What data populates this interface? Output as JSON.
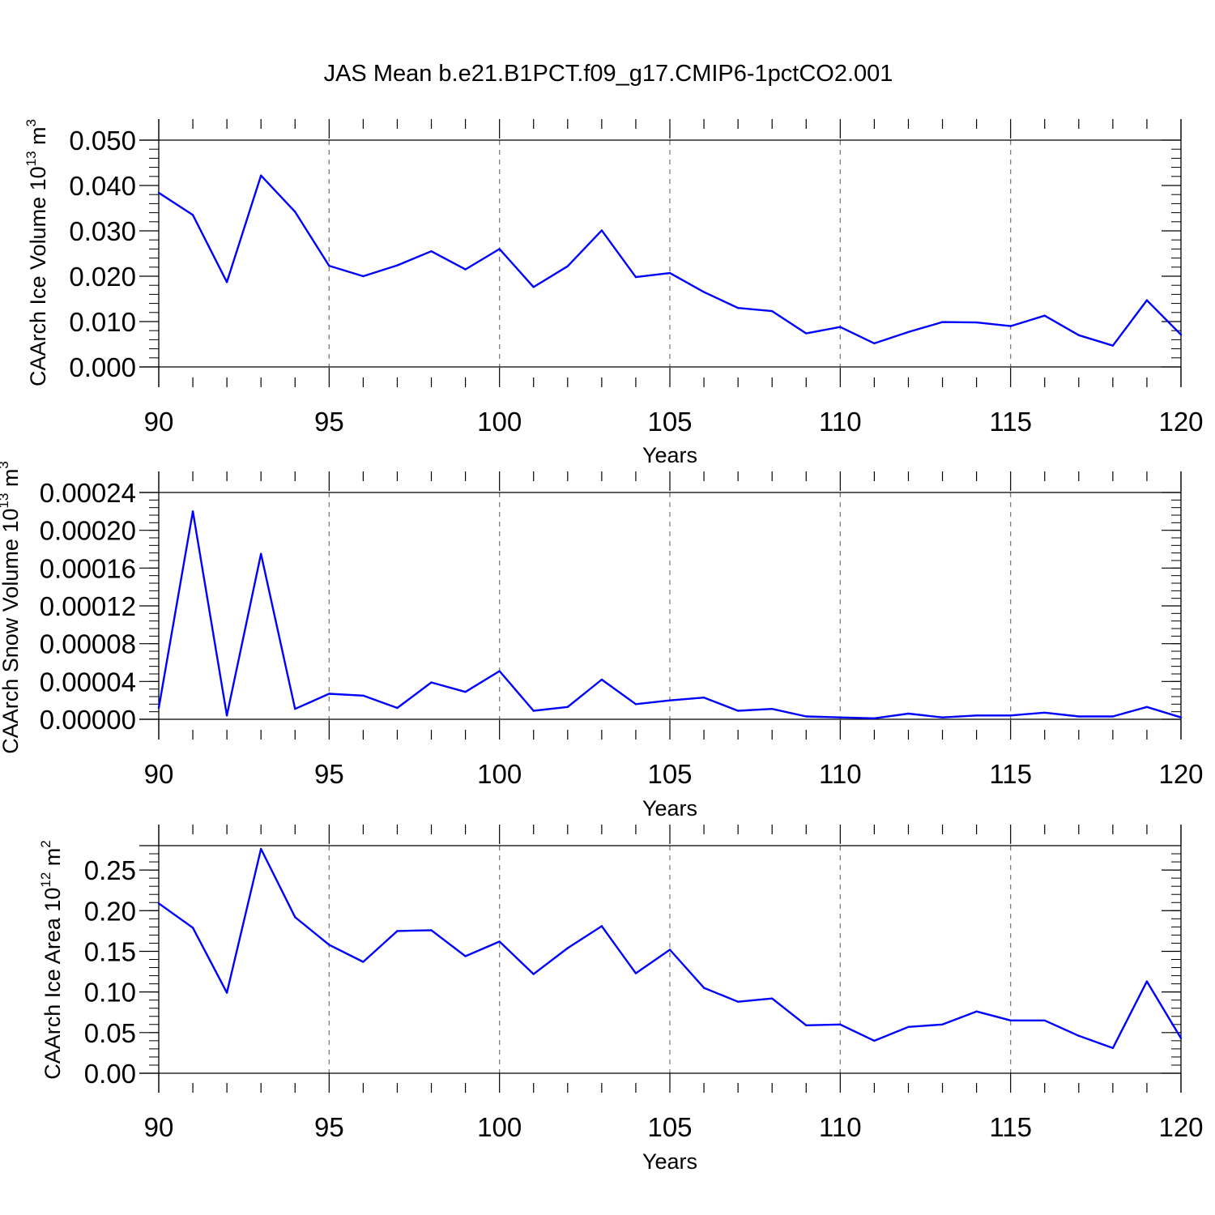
{
  "title": "JAS Mean b.e21.B1PCT.f09_g17.CMIP6-1pctCO2.001",
  "colors": {
    "series": "#0000ff",
    "axis": "#000000",
    "grid": "#808080"
  },
  "chart_data": [
    {
      "type": "line",
      "xlabel": "Years",
      "ylabel": {
        "text": "CAArch Ice Volume 10",
        "exponent": "13",
        "unit": " m",
        "unit_exponent": "3"
      },
      "xlim": [
        90,
        120
      ],
      "ylim": [
        0,
        0.05
      ],
      "x_ticks": [
        "90",
        "95",
        "100",
        "105",
        "110",
        "115",
        "120"
      ],
      "y_ticks": [
        "0.000",
        "0.010",
        "0.020",
        "0.030",
        "0.040",
        "0.050"
      ],
      "grid": "vertical dashed at major x ticks",
      "x": [
        90,
        91,
        92,
        93,
        94,
        95,
        96,
        97,
        98,
        99,
        100,
        101,
        102,
        103,
        104,
        105,
        106,
        107,
        108,
        109,
        110,
        111,
        112,
        113,
        114,
        115,
        116,
        117,
        118,
        119,
        120
      ],
      "values": [
        0.0384,
        0.0335,
        0.0187,
        0.0422,
        0.0342,
        0.0223,
        0.02,
        0.0224,
        0.0255,
        0.0215,
        0.026,
        0.0176,
        0.0222,
        0.0301,
        0.0198,
        0.0207,
        0.0165,
        0.013,
        0.0123,
        0.0074,
        0.0088,
        0.0052,
        0.0077,
        0.0099,
        0.0098,
        0.009,
        0.0113,
        0.007,
        0.0047,
        0.0147,
        0.0071
      ]
    },
    {
      "type": "line",
      "xlabel": "Years",
      "ylabel": {
        "text": "CAArch Snow Volume 10",
        "exponent": "13",
        "unit": " m",
        "unit_exponent": "3"
      },
      "xlim": [
        90,
        120
      ],
      "ylim": [
        0,
        0.00024
      ],
      "x_ticks": [
        "90",
        "95",
        "100",
        "105",
        "110",
        "115",
        "120"
      ],
      "y_ticks": [
        "0.00000",
        "0.00004",
        "0.00008",
        "0.00012",
        "0.00016",
        "0.00020",
        "0.00024"
      ],
      "grid": "vertical dashed at major x ticks",
      "x": [
        90,
        91,
        92,
        93,
        94,
        95,
        96,
        97,
        98,
        99,
        100,
        101,
        102,
        103,
        104,
        105,
        106,
        107,
        108,
        109,
        110,
        111,
        112,
        113,
        114,
        115,
        116,
        117,
        118,
        119,
        120
      ],
      "values": [
        1.2e-05,
        0.00022,
        4e-06,
        0.000175,
        1.1e-05,
        2.7e-05,
        2.5e-05,
        1.2e-05,
        3.9e-05,
        2.9e-05,
        5.1e-05,
        9e-06,
        1.3e-05,
        4.2e-05,
        1.6e-05,
        2e-05,
        2.3e-05,
        9e-06,
        1.1e-05,
        3e-06,
        2e-06,
        1e-06,
        6e-06,
        2e-06,
        4e-06,
        4e-06,
        7e-06,
        3e-06,
        3e-06,
        1.3e-05,
        2e-06
      ]
    },
    {
      "type": "line",
      "xlabel": "Years",
      "ylabel": {
        "text": "CAArch Ice Area 10",
        "exponent": "12",
        "unit": " m",
        "unit_exponent": "2"
      },
      "xlim": [
        90,
        120
      ],
      "ylim": [
        0,
        0.28
      ],
      "x_ticks": [
        "90",
        "95",
        "100",
        "105",
        "110",
        "115",
        "120"
      ],
      "y_ticks": [
        "0.00",
        "0.05",
        "0.10",
        "0.15",
        "0.20",
        "0.25"
      ],
      "grid": "vertical dashed at major x ticks",
      "x": [
        90,
        91,
        92,
        93,
        94,
        95,
        96,
        97,
        98,
        99,
        100,
        101,
        102,
        103,
        104,
        105,
        106,
        107,
        108,
        109,
        110,
        111,
        112,
        113,
        114,
        115,
        116,
        117,
        118,
        119,
        120
      ],
      "values": [
        0.209,
        0.179,
        0.099,
        0.276,
        0.192,
        0.158,
        0.137,
        0.175,
        0.176,
        0.144,
        0.162,
        0.122,
        0.154,
        0.181,
        0.123,
        0.152,
        0.105,
        0.088,
        0.092,
        0.059,
        0.06,
        0.04,
        0.057,
        0.06,
        0.076,
        0.065,
        0.065,
        0.046,
        0.031,
        0.113,
        0.043
      ]
    }
  ]
}
